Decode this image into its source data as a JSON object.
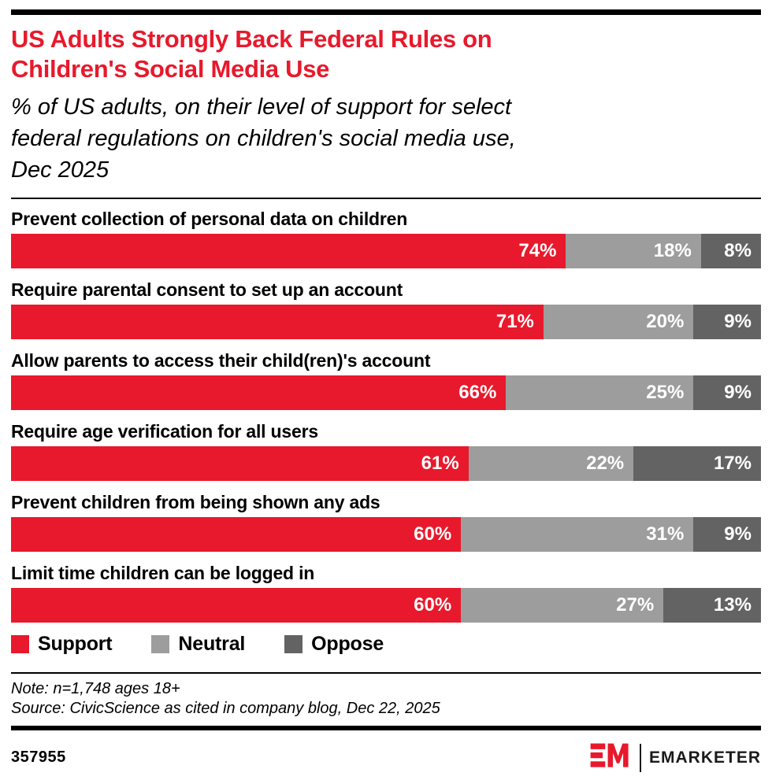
{
  "header": {
    "title_line1": "US Adults Strongly Back Federal Rules on",
    "title_line2": "Children's Social Media Use",
    "subtitle_line1": "% of US adults, on their level of support for select",
    "subtitle_line2": "federal regulations on children's social media use,",
    "subtitle_line3": "Dec 2025"
  },
  "colors": {
    "support_red": "#e8192c",
    "neutral_gray": "#9d9d9d",
    "oppose_gray": "#636363",
    "title_red": "#e8192c",
    "rule_black": "#000000"
  },
  "chart_data": {
    "type": "bar",
    "stacked": true,
    "orientation": "horizontal",
    "unit": "%",
    "xlim": [
      0,
      100
    ],
    "grid": false,
    "legend_position": "bottom",
    "value_label_suffix": "%",
    "categories": [
      "Prevent collection of personal data on children",
      "Require parental consent to set up an account",
      "Allow parents to access their child(ren)'s account",
      "Require age verification for all users",
      "Prevent children from being shown any ads",
      "Limit time children can be logged in"
    ],
    "series": [
      {
        "name": "Support",
        "color": "#e8192c",
        "values": [
          74,
          71,
          66,
          61,
          60,
          60
        ]
      },
      {
        "name": "Neutral",
        "color": "#9d9d9d",
        "values": [
          18,
          20,
          25,
          22,
          31,
          27
        ]
      },
      {
        "name": "Oppose",
        "color": "#636363",
        "values": [
          8,
          9,
          9,
          17,
          9,
          13
        ]
      }
    ]
  },
  "legend": {
    "items": [
      {
        "label": "Support",
        "color": "#e8192c"
      },
      {
        "label": "Neutral",
        "color": "#9d9d9d"
      },
      {
        "label": "Oppose",
        "color": "#636363"
      }
    ]
  },
  "notes": {
    "note": "Note: n=1,748 ages 18+",
    "source": "Source: CivicScience as cited in company blog, Dec 22, 2025"
  },
  "footer": {
    "chart_id": "357955",
    "logo_mark": "EM",
    "brand": "EMARKETER"
  }
}
